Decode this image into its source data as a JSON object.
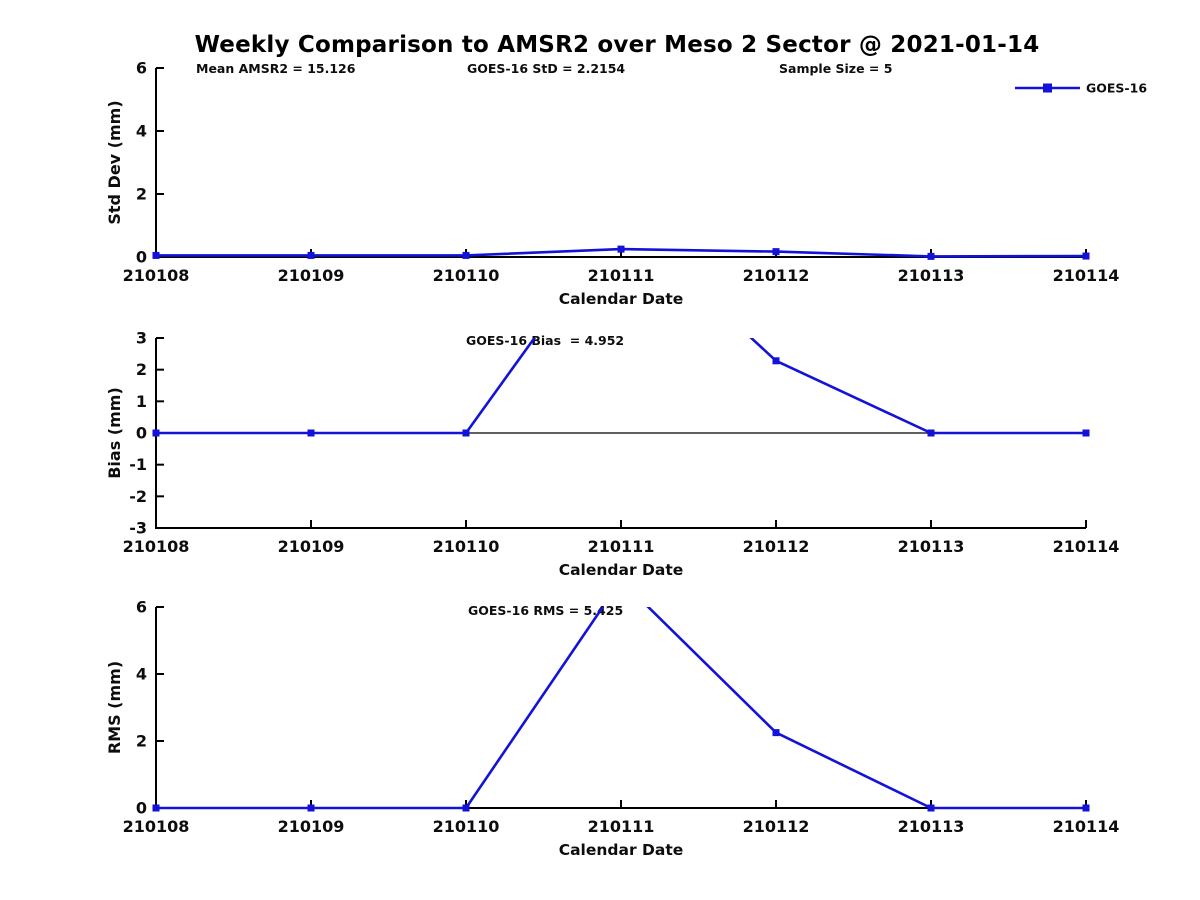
{
  "title": "Weekly Comparison to AMSR2 over Meso 2 Sector @ 2021-01-14",
  "colors": {
    "series": "#1212d9",
    "axis": "#000000",
    "text": "#0d0d0d",
    "background": "#ffffff"
  },
  "chart_data": [
    {
      "type": "line",
      "id": "stddev",
      "ylabel": "Std Dev (mm)",
      "xlabel": "Calendar Date",
      "categories": [
        "210108",
        "210109",
        "210110",
        "210111",
        "210112",
        "210113",
        "210114"
      ],
      "series": [
        {
          "name": "GOES-16",
          "color": "#1212d9",
          "marker": "square",
          "values": [
            0.05,
            0.05,
            0.05,
            0.25,
            0.17,
            0.02,
            0.03
          ]
        }
      ],
      "ylim": [
        0,
        6
      ],
      "yticks": [
        0,
        2,
        4,
        6
      ],
      "grid": false,
      "zero_axis": false,
      "legend": {
        "label": "GOES-16",
        "position": "top-right"
      },
      "annotations": [
        "Mean AMSR2 = 15.126",
        "GOES-16 StD = 2.2154",
        "Sample Size = 5"
      ]
    },
    {
      "type": "line",
      "id": "bias",
      "ylabel": "Bias (mm)",
      "xlabel": "Calendar Date",
      "categories": [
        "210108",
        "210109",
        "210110",
        "210111",
        "210112",
        "210113",
        "210114"
      ],
      "series": [
        {
          "name": "GOES-16",
          "color": "#1212d9",
          "marker": "square",
          "values": [
            0,
            0,
            0,
            6.8,
            2.28,
            0,
            0
          ]
        }
      ],
      "ylim": [
        -3,
        3
      ],
      "yticks": [
        -3,
        -2,
        -1,
        0,
        1,
        2,
        3
      ],
      "grid": false,
      "zero_axis": true,
      "legend": null,
      "annotations": [
        "GOES-16 Bias  = 4.952"
      ]
    },
    {
      "type": "line",
      "id": "rms",
      "ylabel": "RMS (mm)",
      "xlabel": "Calendar Date",
      "categories": [
        "210108",
        "210109",
        "210110",
        "210111",
        "210112",
        "210113",
        "210114"
      ],
      "series": [
        {
          "name": "GOES-16",
          "color": "#1212d9",
          "marker": "square",
          "values": [
            0,
            0,
            0,
            6.8,
            2.25,
            0,
            0
          ]
        }
      ],
      "ylim": [
        0,
        6
      ],
      "yticks": [
        0,
        2,
        4,
        6
      ],
      "grid": false,
      "zero_axis": false,
      "legend": null,
      "annotations": [
        "GOES-16 RMS = 5.425"
      ]
    }
  ]
}
